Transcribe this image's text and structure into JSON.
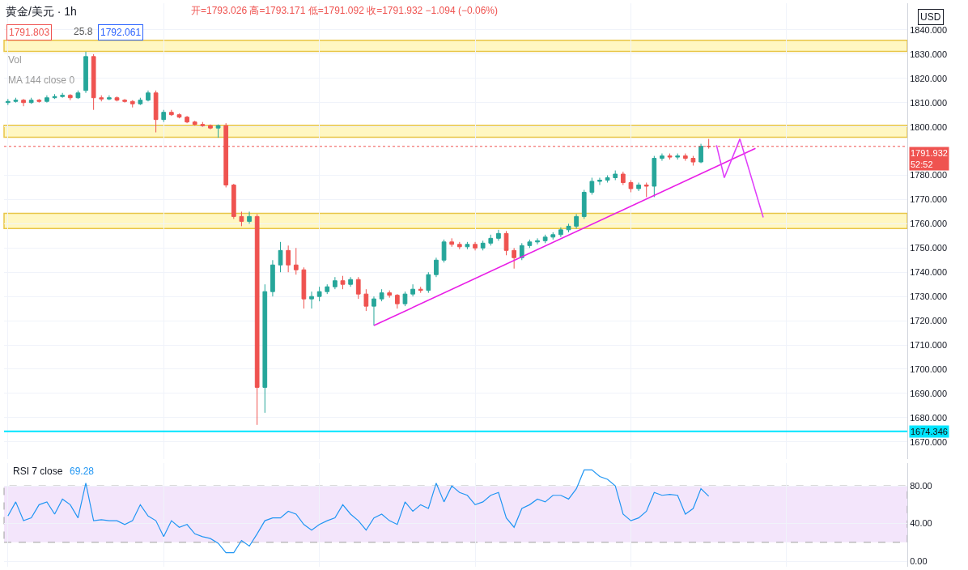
{
  "chart_data": [
    {
      "type": "candlestick",
      "title": "黄金/美元 · 1h",
      "subtitle": "开=1793.026 高=1793.171 低=1791.092 收=1791.932 −1.094 (−0.06%)",
      "categories": [
        null,
        null,
        null,
        null,
        null,
        null,
        null,
        null,
        null,
        null,
        null,
        null,
        null,
        null,
        null,
        null,
        null,
        null,
        null,
        null,
        null,
        null,
        null,
        null,
        null,
        null,
        null,
        null,
        null,
        null,
        null,
        null,
        null,
        null,
        null,
        null,
        null,
        null,
        null,
        null,
        null,
        null,
        null,
        null,
        null,
        null,
        null,
        null,
        null,
        null,
        null,
        null,
        null,
        null,
        null,
        null,
        null,
        null,
        null,
        null,
        null,
        null,
        null,
        null,
        null,
        null,
        null,
        null,
        null,
        null,
        null,
        null,
        null,
        null,
        null,
        null,
        null,
        null,
        null,
        null,
        null,
        null,
        null,
        null,
        null,
        null,
        null,
        null,
        null,
        null,
        null,
        null,
        null,
        null,
        null,
        null,
        null,
        null,
        null,
        null,
        null,
        null,
        null,
        null,
        null,
        null,
        null,
        null,
        null,
        null,
        null,
        null,
        null,
        null,
        null,
        null
      ],
      "ohlc": [
        [
          1810,
          1811.5,
          1809,
          1810.5
        ],
        [
          1810.5,
          1812,
          1810,
          1811
        ],
        [
          1811,
          1811.5,
          1808.5,
          1810
        ],
        [
          1810,
          1812,
          1809.5,
          1811
        ],
        [
          1811,
          1811.5,
          1810,
          1810.5
        ],
        [
          1810.5,
          1813,
          1810,
          1812
        ],
        [
          1812,
          1813.5,
          1811.5,
          1812.5
        ],
        [
          1812.5,
          1814,
          1812,
          1813
        ],
        [
          1813,
          1813.5,
          1811,
          1812
        ],
        [
          1812,
          1815,
          1811.5,
          1814
        ],
        [
          1815,
          1831,
          1814,
          1829
        ],
        [
          1829,
          1830,
          1807,
          1812
        ],
        [
          1812,
          1813,
          1810.5,
          1811.5
        ],
        [
          1811.5,
          1813,
          1811,
          1812
        ],
        [
          1812,
          1812.5,
          1810.5,
          1811
        ],
        [
          1811,
          1811.5,
          1810,
          1810.5
        ],
        [
          1810.5,
          1811,
          1808,
          1809.5
        ],
        [
          1809.5,
          1812,
          1809,
          1811
        ],
        [
          1811,
          1815,
          1810.5,
          1814
        ],
        [
          1814,
          1815,
          1797.7,
          1803
        ],
        [
          1803,
          1807,
          1802,
          1806
        ],
        [
          1806,
          1807,
          1804.5,
          1805
        ],
        [
          1805,
          1805.5,
          1803.5,
          1804
        ],
        [
          1804,
          1804.5,
          1801.5,
          1802
        ],
        [
          1802,
          1802.5,
          1800.5,
          1801
        ],
        [
          1801,
          1802,
          1800,
          1800.5
        ],
        [
          1800.5,
          1801,
          1799,
          1799.5
        ],
        [
          1799.5,
          1801,
          1795.5,
          1800.5
        ],
        [
          1800.5,
          1801.5,
          1775,
          1776
        ],
        [
          1776,
          1776.5,
          1762,
          1763
        ],
        [
          1763,
          1765,
          1759,
          1761
        ],
        [
          1761,
          1765,
          1760,
          1763
        ],
        [
          1763,
          1764,
          1677,
          1692.5
        ],
        [
          1692.5,
          1735,
          1682,
          1732
        ],
        [
          1732,
          1745,
          1730,
          1743
        ],
        [
          1743,
          1752.5,
          1740,
          1749
        ],
        [
          1749,
          1751,
          1740,
          1743
        ],
        [
          1743,
          1750,
          1739,
          1741
        ],
        [
          1741,
          1742,
          1725,
          1729
        ],
        [
          1729,
          1732,
          1725,
          1730
        ],
        [
          1730,
          1734,
          1728,
          1732
        ],
        [
          1732,
          1735,
          1731,
          1734
        ],
        [
          1734,
          1738,
          1733,
          1736.5
        ],
        [
          1736.5,
          1738.5,
          1733,
          1735
        ],
        [
          1735,
          1738,
          1734,
          1737
        ],
        [
          1737,
          1738,
          1729,
          1731
        ],
        [
          1731,
          1733,
          1724,
          1726
        ],
        [
          1726,
          1730,
          1718,
          1729
        ],
        [
          1729,
          1733,
          1728,
          1731.5
        ],
        [
          1731.5,
          1732.5,
          1729.5,
          1730.5
        ],
        [
          1730.5,
          1731,
          1725,
          1727
        ],
        [
          1727,
          1732,
          1726,
          1731
        ],
        [
          1731,
          1735,
          1730,
          1733
        ],
        [
          1733,
          1734,
          1731.5,
          1732.5
        ],
        [
          1732.5,
          1740,
          1731.5,
          1739
        ],
        [
          1739,
          1746,
          1738,
          1745
        ],
        [
          1745,
          1753.5,
          1744,
          1752.5
        ],
        [
          1752.5,
          1754,
          1750.5,
          1751.5
        ],
        [
          1751.5,
          1752.5,
          1749.5,
          1750.5
        ],
        [
          1750.5,
          1752.5,
          1749.5,
          1751.5
        ],
        [
          1751.5,
          1752.5,
          1749,
          1750
        ],
        [
          1750,
          1753,
          1749,
          1752
        ],
        [
          1752,
          1755.5,
          1751,
          1754
        ],
        [
          1754,
          1757.5,
          1753,
          1756
        ],
        [
          1756,
          1757,
          1747,
          1749
        ],
        [
          1749,
          1750,
          1741.5,
          1746
        ],
        [
          1746,
          1752,
          1745,
          1751
        ],
        [
          1751,
          1753.5,
          1750,
          1752.5
        ],
        [
          1752.5,
          1754,
          1751.5,
          1753
        ],
        [
          1753,
          1755.5,
          1752,
          1754.5
        ],
        [
          1754.5,
          1756.5,
          1753.5,
          1755.5
        ],
        [
          1755.5,
          1758.5,
          1754.5,
          1757.5
        ],
        [
          1757.5,
          1760,
          1756.5,
          1759
        ],
        [
          1759,
          1764,
          1758,
          1763
        ],
        [
          1763,
          1774,
          1762,
          1773
        ],
        [
          1773,
          1779,
          1772,
          1777.5
        ],
        [
          1777.5,
          1779,
          1776,
          1778
        ],
        [
          1778,
          1780,
          1777,
          1779
        ],
        [
          1779,
          1782,
          1778,
          1780.5
        ],
        [
          1780.5,
          1781.5,
          1776,
          1777
        ],
        [
          1777,
          1778,
          1773,
          1774.5
        ],
        [
          1774.5,
          1777,
          1773.5,
          1776
        ],
        [
          1776,
          1777,
          1771,
          1775.5
        ],
        [
          1775.5,
          1788,
          1771,
          1787
        ],
        [
          1787,
          1789,
          1786,
          1788
        ],
        [
          1788,
          1789,
          1786.5,
          1787.5
        ],
        [
          1787.5,
          1789,
          1786.5,
          1788
        ],
        [
          1788,
          1789,
          1786,
          1787
        ],
        [
          1787,
          1788,
          1784,
          1785.5
        ],
        [
          1785.5,
          1793,
          1785,
          1792
        ],
        [
          1792,
          1795,
          1791,
          1791.932
        ],
        null,
        null,
        null,
        null,
        null,
        null,
        null,
        null,
        null,
        null,
        null,
        null,
        null,
        null,
        null,
        null,
        null,
        null,
        null,
        null,
        null,
        null,
        null,
        null,
        null
      ],
      "colors": [
        "#26a69a",
        "#26a69a",
        "#ef5350",
        "#26a69a",
        "#ef5350",
        "#26a69a",
        "#26a69a",
        "#26a69a",
        "#ef5350",
        "#26a69a",
        "#26a69a",
        "#ef5350",
        "#ef5350",
        "#26a69a",
        "#ef5350",
        "#ef5350",
        "#ef5350",
        "#26a69a",
        "#26a69a",
        "#ef5350",
        "#26a69a",
        "#ef5350",
        "#ef5350",
        "#ef5350",
        "#ef5350",
        "#ef5350",
        "#ef5350",
        "#26a69a",
        "#ef5350",
        "#ef5350",
        "#ef5350",
        "#26a69a",
        "#ef5350",
        "#26a69a",
        "#26a69a",
        "#26a69a",
        "#ef5350",
        "#ef5350",
        "#ef5350",
        "#26a69a",
        "#26a69a",
        "#26a69a",
        "#26a69a",
        "#ef5350",
        "#26a69a",
        "#ef5350",
        "#ef5350",
        "#26a69a",
        "#26a69a",
        "#ef5350",
        "#ef5350",
        "#26a69a",
        "#26a69a",
        "#ef5350",
        "#26a69a",
        "#26a69a",
        "#26a69a",
        "#ef5350",
        "#ef5350",
        "#26a69a",
        "#ef5350",
        "#26a69a",
        "#26a69a",
        "#26a69a",
        "#ef5350",
        "#ef5350",
        "#26a69a",
        "#26a69a",
        "#26a69a",
        "#26a69a",
        "#26a69a",
        "#26a69a",
        "#26a69a",
        "#26a69a",
        "#26a69a",
        "#26a69a",
        "#26a69a",
        "#26a69a",
        "#26a69a",
        "#ef5350",
        "#ef5350",
        "#26a69a",
        "#ef5350",
        "#26a69a",
        "#26a69a",
        "#ef5350",
        "#26a69a",
        "#ef5350",
        "#ef5350",
        "#26a69a",
        "#ef5350",
        null,
        null,
        null,
        null,
        null,
        null,
        null,
        null,
        null,
        null,
        null,
        null,
        null,
        null,
        null,
        null,
        null,
        null,
        null,
        null,
        null,
        null,
        null,
        null,
        null
      ],
      "series": [
        {
          "type": "line",
          "color": "#e91ee6",
          "values": [
            null,
            null,
            null,
            null,
            null,
            null,
            null,
            null,
            null,
            null,
            null,
            null,
            null,
            null,
            null,
            null,
            null,
            null,
            null,
            null,
            null,
            null,
            null,
            null,
            null,
            null,
            null,
            null,
            null,
            null,
            null,
            null,
            null,
            null,
            null,
            null,
            null,
            null,
            null,
            null,
            null,
            null,
            null,
            null,
            null,
            null,
            null,
            1718,
            null,
            null,
            null,
            null,
            null,
            null,
            null,
            null,
            null,
            null,
            null,
            null,
            null,
            null,
            null,
            null,
            null,
            null,
            null,
            null,
            null,
            null,
            null,
            null,
            null,
            null,
            null,
            null,
            null,
            null,
            null,
            null,
            null,
            null,
            null,
            null,
            null,
            null,
            null,
            null,
            null,
            null,
            null,
            null,
            null,
            null,
            null,
            null,
            1791.1,
            null,
            null,
            null,
            null,
            null,
            null,
            null,
            null,
            null,
            null,
            null,
            null,
            null,
            null,
            null,
            null,
            null,
            null,
            null
          ]
        },
        {
          "type": "line",
          "color": "#e040fb",
          "values": [
            null,
            null,
            null,
            null,
            null,
            null,
            null,
            null,
            null,
            null,
            null,
            null,
            null,
            null,
            null,
            null,
            null,
            null,
            null,
            null,
            null,
            null,
            null,
            null,
            null,
            null,
            null,
            null,
            null,
            null,
            null,
            null,
            null,
            null,
            null,
            null,
            null,
            null,
            null,
            null,
            null,
            null,
            null,
            null,
            null,
            null,
            null,
            null,
            null,
            null,
            null,
            null,
            null,
            null,
            null,
            null,
            null,
            null,
            null,
            null,
            null,
            null,
            null,
            null,
            null,
            null,
            null,
            null,
            null,
            null,
            null,
            null,
            null,
            null,
            null,
            null,
            null,
            null,
            null,
            null,
            null,
            null,
            null,
            null,
            null,
            null,
            null,
            null,
            null,
            null,
            null,
            1792.4,
            1779,
            null,
            1795,
            null,
            null,
            1762.6,
            null,
            null,
            null,
            null,
            null,
            null,
            null,
            null,
            null,
            null,
            null,
            null,
            null,
            null,
            null,
            null,
            null,
            null
          ]
        }
      ],
      "ylim": [
        1663,
        1851
      ],
      "yticks": [
        {
          "value": 1670,
          "label": "1670.000"
        },
        {
          "value": 1680,
          "label": "1680.000"
        },
        {
          "value": 1690,
          "label": "1690.000"
        },
        {
          "value": 1700,
          "label": "1700.000"
        },
        {
          "value": 1710,
          "label": "1710.000"
        },
        {
          "value": 1720,
          "label": "1720.000"
        },
        {
          "value": 1730,
          "label": "1730.000"
        },
        {
          "value": 1740,
          "label": "1740.000"
        },
        {
          "value": 1750,
          "label": "1750.000"
        },
        {
          "value": 1760,
          "label": "1760.000"
        },
        {
          "value": 1770,
          "label": "1770.000"
        },
        {
          "value": 1780,
          "label": "1780.000"
        },
        {
          "value": 1800,
          "label": "1800.000"
        },
        {
          "value": 1810,
          "label": "1810.000"
        },
        {
          "value": 1820,
          "label": "1820.000"
        },
        {
          "value": 1830,
          "label": "1830.000"
        },
        {
          "value": 1840,
          "label": "1840.000"
        }
      ],
      "bands": [
        {
          "axis": "y",
          "from": 1831.1,
          "to": 1835.7,
          "color": "#fff7c2"
        },
        {
          "axis": "y",
          "from": 1795.7,
          "to": 1800.6,
          "color": "#fff7c2"
        },
        {
          "axis": "y",
          "from": 1758,
          "to": 1764.3,
          "color": "#fff7c2"
        }
      ],
      "ref_lines": [
        {
          "axis": "y",
          "value": 1791.932,
          "label": "1791.932\n52:52",
          "color": "#ef5350",
          "line_style": "dotted"
        },
        {
          "axis": "y",
          "value": 1674.346,
          "label": "1674.346",
          "color": "#00e5ff",
          "line_style": "solid"
        }
      ],
      "annotations": [
        "1791.803",
        "25.8",
        "1792.061",
        "Vol",
        "MA 144 close 0",
        "USD"
      ],
      "grid": true,
      "tick_labels": "y"
    },
    {
      "type": "line",
      "title": "RSI 7 close",
      "categories": [
        null,
        null,
        null,
        null,
        null,
        null,
        null,
        null,
        null,
        null,
        null,
        null,
        null,
        null,
        null,
        null,
        null,
        null,
        null,
        null,
        null,
        null,
        null,
        null,
        null,
        null,
        null,
        null,
        null,
        null,
        null,
        null,
        null,
        null,
        null,
        null,
        null,
        null,
        null,
        null,
        null,
        null,
        null,
        null,
        null,
        null,
        null,
        null,
        null,
        null,
        null,
        null,
        null,
        null,
        null,
        null,
        null,
        null,
        null,
        null,
        null,
        null,
        null,
        null,
        null,
        null,
        null,
        null,
        null,
        null,
        null,
        null,
        null,
        null,
        null,
        null,
        null,
        null,
        null,
        null,
        null,
        null,
        null,
        null,
        null,
        null,
        null,
        null,
        null,
        null,
        null,
        null,
        null,
        null,
        null,
        null,
        null,
        null,
        null,
        null,
        null,
        null,
        null,
        null,
        null,
        null,
        null,
        null,
        null,
        null,
        null,
        null,
        null,
        null,
        null,
        null
      ],
      "series": [
        {
          "color": "#2196f3",
          "values": [
            48,
            63,
            43,
            46,
            60,
            63,
            50,
            66,
            60,
            46,
            83,
            43,
            44,
            43,
            43,
            39,
            43,
            60,
            48,
            43,
            26,
            43,
            36,
            39,
            29,
            26,
            24,
            19,
            9,
            9,
            22,
            16,
            29,
            43,
            46,
            46,
            53,
            50,
            39,
            33,
            39,
            43,
            46,
            60,
            50,
            43,
            33,
            46,
            50,
            43,
            39,
            63,
            53,
            60,
            56,
            83,
            63,
            80,
            73,
            70,
            60,
            63,
            70,
            73,
            46,
            36,
            56,
            60,
            66,
            63,
            70,
            70,
            66,
            77,
            97,
            97,
            90,
            87,
            80,
            50,
            43,
            46,
            53,
            73,
            70,
            71,
            70,
            50,
            56,
            77,
            69,
            null,
            null,
            null,
            null,
            null,
            null,
            null,
            null,
            null,
            null,
            null,
            null,
            null,
            null,
            null,
            null,
            null,
            null,
            null,
            null,
            null,
            null,
            null,
            null,
            null
          ]
        }
      ],
      "ylim": [
        -6,
        104
      ],
      "yticks": [
        {
          "value": 0,
          "label": "0.00"
        },
        {
          "value": 40,
          "label": "40.00"
        },
        {
          "value": 80,
          "label": "80.00"
        }
      ],
      "bands": [
        {
          "axis": "y",
          "from": 20,
          "to": 80,
          "color": "#f3e5fb"
        }
      ],
      "annotations": [
        "69.28"
      ],
      "grid": true,
      "tick_labels": "y"
    }
  ]
}
